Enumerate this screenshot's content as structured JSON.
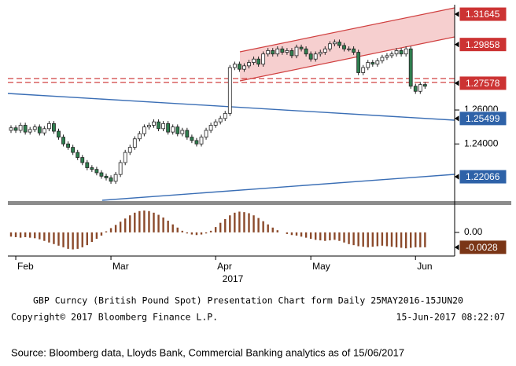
{
  "chart_data": {
    "type": "candlestick",
    "categories": [
      null,
      "Feb",
      null,
      null,
      null,
      null,
      null,
      null,
      null,
      null,
      null,
      null,
      null,
      null,
      null,
      null,
      null,
      null,
      null,
      null,
      null,
      "Mar",
      null,
      null,
      null,
      null,
      null,
      null,
      null,
      null,
      null,
      null,
      null,
      null,
      null,
      null,
      null,
      null,
      null,
      null,
      null,
      null,
      null,
      "Apr",
      null,
      null,
      null,
      null,
      null,
      null,
      null,
      null,
      null,
      null,
      null,
      null,
      null,
      null,
      null,
      null,
      null,
      null,
      null,
      "May",
      null,
      null,
      null,
      null,
      null,
      null,
      null,
      null,
      null,
      null,
      null,
      null,
      null,
      null,
      null,
      null,
      null,
      null,
      null,
      null,
      null,
      "Jun",
      null,
      null
    ],
    "x_year": "2017",
    "open": [
      1.248,
      1.2495,
      1.248,
      1.251,
      1.247,
      1.2485,
      1.25,
      1.2465,
      1.249,
      1.252,
      1.2475,
      1.244,
      1.24,
      1.238,
      1.235,
      1.232,
      1.229,
      1.226,
      1.225,
      1.223,
      1.221,
      1.22,
      1.218,
      1.222,
      1.229,
      1.235,
      1.238,
      1.243,
      1.246,
      1.25,
      1.251,
      1.253,
      1.249,
      1.252,
      1.247,
      1.25,
      1.246,
      1.248,
      1.244,
      1.242,
      1.24,
      1.244,
      1.248,
      1.251,
      1.253,
      1.255,
      1.258,
      1.285,
      1.287,
      1.284,
      1.286,
      1.288,
      1.29,
      1.287,
      1.293,
      1.295,
      1.293,
      1.296,
      1.294,
      1.295,
      1.292,
      1.297,
      1.296,
      1.293,
      1.29,
      1.293,
      1.294,
      1.296,
      1.299,
      1.3,
      1.298,
      1.296,
      1.296,
      1.294,
      1.282,
      1.285,
      1.288,
      1.287,
      1.289,
      1.291,
      1.292,
      1.293,
      1.295,
      1.293,
      1.296,
      1.274,
      1.271,
      1.275
    ],
    "high": [
      1.251,
      1.251,
      1.2525,
      1.2525,
      1.25,
      1.2515,
      1.2515,
      1.2505,
      1.2535,
      1.2535,
      1.249,
      1.2455,
      1.2415,
      1.2395,
      1.2365,
      1.2335,
      1.2305,
      1.2275,
      1.2265,
      1.2245,
      1.2225,
      1.2215,
      1.2235,
      1.2305,
      1.2365,
      1.2395,
      1.2445,
      1.2475,
      1.2515,
      1.2525,
      1.2545,
      1.2545,
      1.2535,
      1.2535,
      1.2515,
      1.2515,
      1.2495,
      1.2495,
      1.2455,
      1.2435,
      1.2455,
      1.2495,
      1.2525,
      1.2545,
      1.2565,
      1.2595,
      1.2865,
      1.2885,
      1.2885,
      1.2875,
      1.2895,
      1.2915,
      1.2915,
      1.2945,
      1.2965,
      1.2965,
      1.2975,
      1.2975,
      1.2965,
      1.2965,
      1.2985,
      1.2985,
      1.2975,
      1.2945,
      1.2945,
      1.2955,
      1.2975,
      1.3005,
      1.3015,
      1.3015,
      1.2995,
      1.2975,
      1.2975,
      1.2955,
      1.2865,
      1.2895,
      1.2895,
      1.2905,
      1.2925,
      1.2935,
      1.2945,
      1.2965,
      1.2965,
      1.2975,
      1.2975,
      1.2755,
      1.2765,
      1.2765
    ],
    "low": [
      1.2465,
      1.2465,
      1.2465,
      1.2455,
      1.2455,
      1.247,
      1.245,
      1.245,
      1.2475,
      1.246,
      1.2425,
      1.2385,
      1.2365,
      1.2335,
      1.2305,
      1.2275,
      1.2245,
      1.2235,
      1.2215,
      1.2195,
      1.2185,
      1.2165,
      1.2165,
      1.2205,
      1.2275,
      1.2335,
      1.2365,
      1.2415,
      1.2445,
      1.2485,
      1.2495,
      1.2475,
      1.2475,
      1.2455,
      1.2455,
      1.2445,
      1.2445,
      1.2425,
      1.2405,
      1.2385,
      1.2385,
      1.2425,
      1.2465,
      1.2495,
      1.2515,
      1.2535,
      1.2565,
      1.2835,
      1.2825,
      1.2825,
      1.2845,
      1.2865,
      1.2855,
      1.2855,
      1.2915,
      1.2915,
      1.2915,
      1.2925,
      1.2925,
      1.2905,
      1.2905,
      1.2945,
      1.2915,
      1.2885,
      1.2885,
      1.2915,
      1.2925,
      1.2945,
      1.2975,
      1.2965,
      1.2945,
      1.2945,
      1.2925,
      1.2805,
      1.2805,
      1.2835,
      1.2855,
      1.2855,
      1.2875,
      1.2895,
      1.2905,
      1.2915,
      1.2915,
      1.2915,
      1.2725,
      1.2695,
      1.2695,
      1.2725
    ],
    "close": [
      1.2495,
      1.248,
      1.251,
      1.247,
      1.2485,
      1.25,
      1.2465,
      1.249,
      1.252,
      1.2475,
      1.244,
      1.24,
      1.238,
      1.235,
      1.232,
      1.229,
      1.226,
      1.225,
      1.223,
      1.221,
      1.22,
      1.218,
      1.222,
      1.229,
      1.235,
      1.238,
      1.243,
      1.246,
      1.25,
      1.251,
      1.253,
      1.249,
      1.252,
      1.247,
      1.25,
      1.246,
      1.248,
      1.244,
      1.242,
      1.24,
      1.244,
      1.248,
      1.251,
      1.253,
      1.255,
      1.258,
      1.285,
      1.287,
      1.284,
      1.286,
      1.288,
      1.29,
      1.287,
      1.293,
      1.295,
      1.293,
      1.296,
      1.294,
      1.295,
      1.292,
      1.297,
      1.296,
      1.293,
      1.29,
      1.293,
      1.294,
      1.296,
      1.299,
      1.3,
      1.298,
      1.296,
      1.296,
      1.294,
      1.282,
      1.285,
      1.288,
      1.287,
      1.289,
      1.291,
      1.292,
      1.293,
      1.295,
      1.293,
      1.296,
      1.274,
      1.271,
      1.275,
      1.274
    ],
    "up_color": "#ffffff",
    "down_color": "#2f7f4f",
    "ylim": [
      1.2068,
      1.3211
    ],
    "yticks": [
      {
        "value": 1.26,
        "label": "1.26000"
      },
      {
        "value": 1.24,
        "label": "1.24000"
      }
    ],
    "price_labels": [
      {
        "value": 1.31645,
        "color": "#cc3333"
      },
      {
        "value": 1.29858,
        "color": "#cc3333"
      },
      {
        "value": 1.27578,
        "color": "#cc3333"
      },
      {
        "value": 1.25499,
        "color": "#2e62a8"
      },
      {
        "value": 1.22066,
        "color": "#2e62a8"
      }
    ],
    "oscillator": {
      "type": "bar",
      "color": "#8b4a2b",
      "values": [
        -0.0008,
        -0.0009,
        -0.001,
        -0.0009,
        -0.001,
        -0.0011,
        -0.0013,
        -0.0016,
        -0.0019,
        -0.0022,
        -0.0025,
        -0.0028,
        -0.0031,
        -0.0032,
        -0.0031,
        -0.0028,
        -0.0024,
        -0.0018,
        -0.0012,
        -0.0006,
        0.0002,
        0.0008,
        0.0014,
        0.002,
        0.0026,
        0.0032,
        0.0037,
        0.004,
        0.0041,
        0.004,
        0.0037,
        0.0033,
        0.0028,
        0.0022,
        0.0015,
        0.0009,
        0.0003,
        -0.0002,
        -0.0004,
        -0.0005,
        -0.0004,
        -0.0002,
        0.0003,
        0.001,
        0.0018,
        0.0025,
        0.0032,
        0.0037,
        0.0039,
        0.0038,
        0.0036,
        0.0032,
        0.0027,
        0.0021,
        0.0015,
        0.0009,
        0.0004,
        0.0,
        -0.0003,
        -0.0005,
        -0.0006,
        -0.0008,
        -0.001,
        -0.0012,
        -0.0014,
        -0.0015,
        -0.0016,
        -0.0015,
        -0.0014,
        -0.0016,
        -0.0019,
        -0.0022,
        -0.0024,
        -0.0026,
        -0.0027,
        -0.0028,
        -0.0027,
        -0.0026,
        -0.0025,
        -0.0026,
        -0.0027,
        -0.0028,
        -0.0029,
        -0.003,
        -0.0029,
        -0.0028,
        -0.0028,
        -0.0028
      ],
      "ylim": [
        -0.0043,
        0.005
      ],
      "yticks": [
        {
          "value": 0,
          "label": "0.00"
        }
      ],
      "last_value": -0.0028,
      "last_color": "#7a3516"
    }
  },
  "footer": {
    "line1": "GBP Curncy (British Pound Spot) Presentation Chart form  Daily 25MAY2016-15JUN20",
    "copyright": "Copyright© 2017 Bloomberg Finance L.P.",
    "timestamp": "15-Jun-2017 08:22:07"
  },
  "source": "Source: Bloomberg data, Lloyds Bank, Commercial Banking analytics as of 15/06/2017"
}
